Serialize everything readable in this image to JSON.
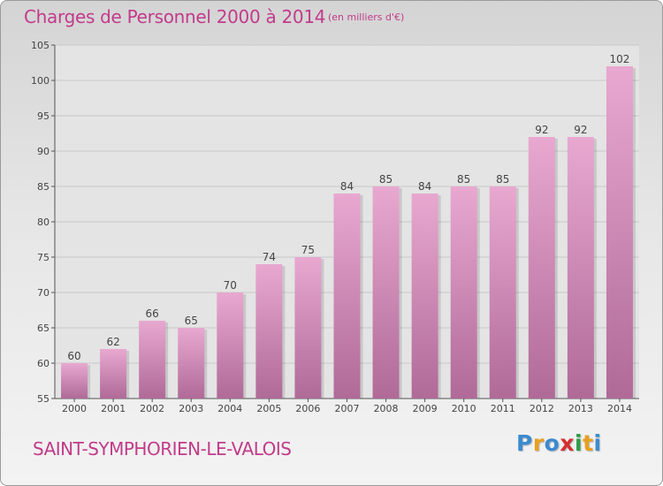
{
  "header": {
    "title": "Charges de Personnel 2000 à 2014",
    "subtitle": "(en milliers d'€)"
  },
  "footer": {
    "commune": "SAINT-SYMPHORIEN-LE-VALOIS",
    "logo": "Proxiti"
  },
  "colors": {
    "bar_top": "#e8a8d0",
    "bar_bottom": "#b06a98",
    "title": "#c23b8a",
    "grid": "#c8c8c8"
  },
  "chart_data": {
    "type": "bar",
    "title": "Charges de Personnel 2000 à 2014",
    "subtitle": "(en milliers d'€)",
    "categories": [
      "2000",
      "2001",
      "2002",
      "2003",
      "2004",
      "2005",
      "2006",
      "2007",
      "2008",
      "2009",
      "2010",
      "2011",
      "2012",
      "2013",
      "2014"
    ],
    "values": [
      60,
      62,
      66,
      65,
      70,
      74,
      75,
      84,
      85,
      84,
      85,
      85,
      92,
      92,
      102
    ],
    "ylim": [
      55,
      105
    ],
    "yticks": [
      55,
      60,
      65,
      70,
      75,
      80,
      85,
      90,
      95,
      100,
      105
    ],
    "grid": true,
    "xlabel": "",
    "ylabel": ""
  }
}
